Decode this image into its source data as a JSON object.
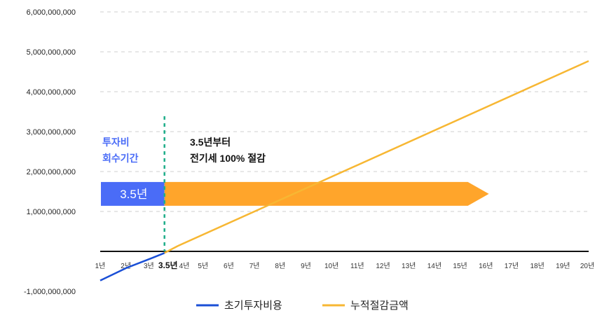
{
  "chart_data": {
    "type": "line",
    "ylim": [
      -1000000000,
      6000000000
    ],
    "yticks": [
      {
        "value": 6000000000,
        "label": "6,000,000,000"
      },
      {
        "value": 5000000000,
        "label": "5,000,000,000"
      },
      {
        "value": 4000000000,
        "label": "4,000,000,000"
      },
      {
        "value": 3000000000,
        "label": "3,000,000,000"
      },
      {
        "value": 2000000000,
        "label": "2,000,000,000"
      },
      {
        "value": 1000000000,
        "label": "1,000,000,000"
      },
      {
        "value": -1000000000,
        "label": "-1,000,000,000"
      }
    ],
    "xlim": [
      1,
      20
    ],
    "xticks": [
      {
        "value": 1,
        "label": "1년"
      },
      {
        "value": 2,
        "label": "2년"
      },
      {
        "value": 3,
        "label": "3년"
      },
      {
        "value": 3.5,
        "label": "3.5년",
        "emphasis": true
      },
      {
        "value": 4,
        "label": "4년"
      },
      {
        "value": 5,
        "label": "5년"
      },
      {
        "value": 6,
        "label": "6년"
      },
      {
        "value": 7,
        "label": "7년"
      },
      {
        "value": 8,
        "label": "8년"
      },
      {
        "value": 9,
        "label": "9년"
      },
      {
        "value": 10,
        "label": "10년"
      },
      {
        "value": 11,
        "label": "11년"
      },
      {
        "value": 12,
        "label": "12년"
      },
      {
        "value": 13,
        "label": "13년"
      },
      {
        "value": 14,
        "label": "14년"
      },
      {
        "value": 15,
        "label": "15년"
      },
      {
        "value": 16,
        "label": "16년"
      },
      {
        "value": 17,
        "label": "17년"
      },
      {
        "value": 18,
        "label": "18년"
      },
      {
        "value": 19,
        "label": "19년"
      },
      {
        "value": 20,
        "label": "20년"
      }
    ],
    "grid": true,
    "series": [
      {
        "name": "초기투자비용",
        "color": "#1a4fd6",
        "points": [
          [
            1,
            -730000000
          ],
          [
            2,
            -420000000
          ],
          [
            3,
            -170000000
          ],
          [
            3.5,
            -40000000
          ]
        ]
      },
      {
        "name": "누적절감금액",
        "color": "#f7b733",
        "points": [
          [
            3.5,
            -40000000
          ],
          [
            4,
            130000000
          ],
          [
            20,
            4770000000
          ]
        ]
      }
    ],
    "payback_marker": {
      "x": 3.5,
      "color": "#1fae8a"
    },
    "bands": [
      {
        "x_start": 1,
        "x_end": 3.5,
        "y_value": 1440000000,
        "color": "#4a6cf7",
        "label": "3.5년"
      },
      {
        "x_start": 3.5,
        "x_end": 15.3,
        "y_value": 1440000000,
        "color": "#ffa52b",
        "label": ""
      }
    ],
    "annotations": {
      "payback_line1": "투자비",
      "payback_line2": "회수기간",
      "savings_line1": "3.5년부터",
      "savings_line2": "전기세 100% 절감"
    },
    "legend_position": "bottom-center"
  }
}
